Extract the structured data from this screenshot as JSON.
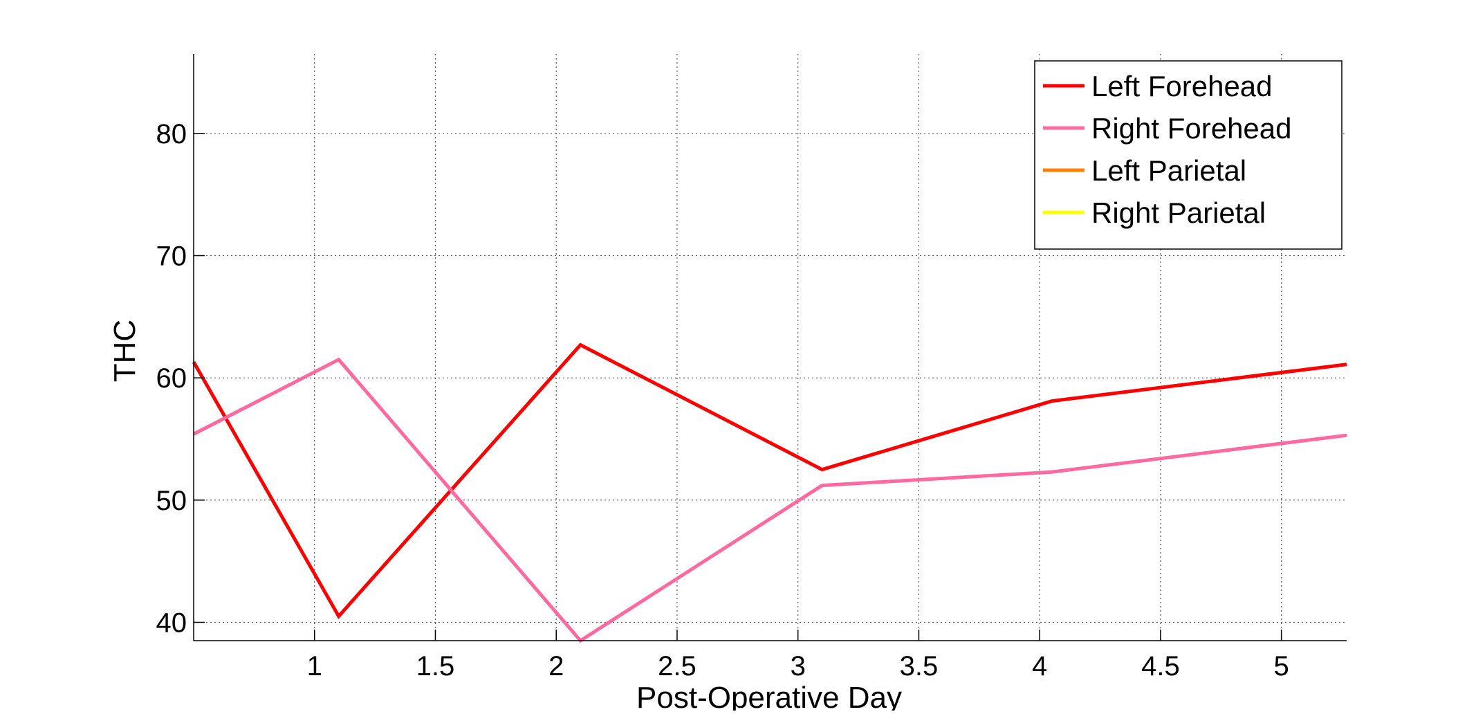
{
  "chart_data": {
    "type": "line",
    "title": "",
    "xlabel": "Post-Operative Day",
    "ylabel": "THC",
    "xlim": [
      0.5,
      5.27
    ],
    "ylim": [
      38.5,
      86.5
    ],
    "xticks": [
      1,
      1.5,
      2,
      2.5,
      3,
      3.5,
      4,
      4.5,
      5
    ],
    "yticks": [
      40,
      50,
      60,
      70,
      80
    ],
    "xtick_labels": [
      "1",
      "1.5",
      "2",
      "2.5",
      "3",
      "3.5",
      "4",
      "4.5",
      "5"
    ],
    "ytick_labels": [
      "40",
      "50",
      "60",
      "70",
      "80"
    ],
    "grid": true,
    "legend_position": "top-right",
    "series": [
      {
        "name": "Left Forehead",
        "color": "#ff0000",
        "x": [
          0.5,
          1.1,
          2.1,
          3.1,
          4.05,
          5.27
        ],
        "y": [
          61.3,
          40.5,
          62.7,
          52.5,
          58.1,
          61.1
        ]
      },
      {
        "name": "Right Forehead",
        "color": "#ff69a0",
        "x": [
          0.5,
          1.1,
          2.1,
          3.1,
          4.05,
          5.27
        ],
        "y": [
          55.4,
          61.5,
          38.5,
          51.2,
          52.3,
          55.3
        ]
      },
      {
        "name": "Left Parietal",
        "color": "#ff7f00",
        "x": [],
        "y": []
      },
      {
        "name": "Right Parietal",
        "color": "#ffff00",
        "x": [],
        "y": []
      }
    ]
  }
}
